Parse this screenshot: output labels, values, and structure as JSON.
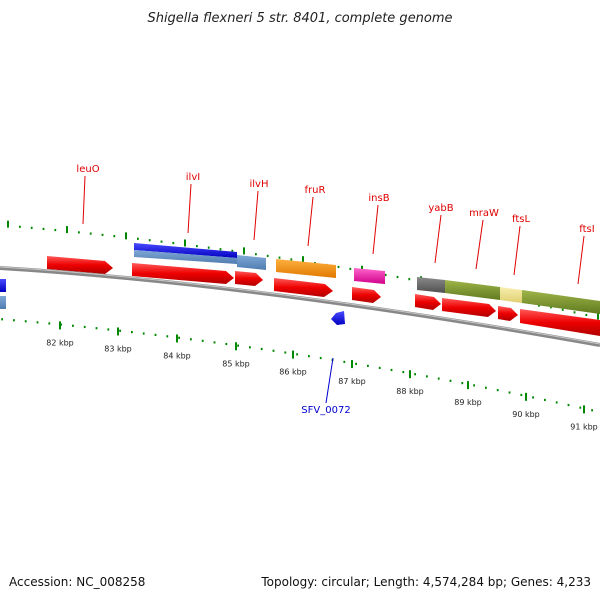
{
  "title": "Shigella flexneri 5 str. 8401, complete genome",
  "footer": {
    "accession": "Accession: NC_008258",
    "summary": "Topology: circular; Length: 4,574,284 bp; Genes: 4,233"
  },
  "colors": {
    "backbone": "#808080",
    "cds": "#ee0000",
    "tick": "#008800",
    "label_forward": "#e00000",
    "label_reverse": "#0000d0"
  },
  "kbp_labels": [
    "82 kbp",
    "83 kbp",
    "84 kbp",
    "85 kbp",
    "86 kbp",
    "87 kbp",
    "88 kbp",
    "89 kbp",
    "90 kbp",
    "91 kbp"
  ],
  "gene_labels": [
    {
      "name": "leuO",
      "strand": "forward"
    },
    {
      "name": "ilvI",
      "strand": "forward"
    },
    {
      "name": "ilvH",
      "strand": "forward"
    },
    {
      "name": "fruR",
      "strand": "forward"
    },
    {
      "name": "insB",
      "strand": "forward"
    },
    {
      "name": "yabB",
      "strand": "forward"
    },
    {
      "name": "mraW",
      "strand": "forward"
    },
    {
      "name": "ftsL",
      "strand": "forward"
    },
    {
      "name": "ftsI",
      "strand": "forward"
    },
    {
      "name": "SFV_0072",
      "strand": "reverse"
    }
  ]
}
